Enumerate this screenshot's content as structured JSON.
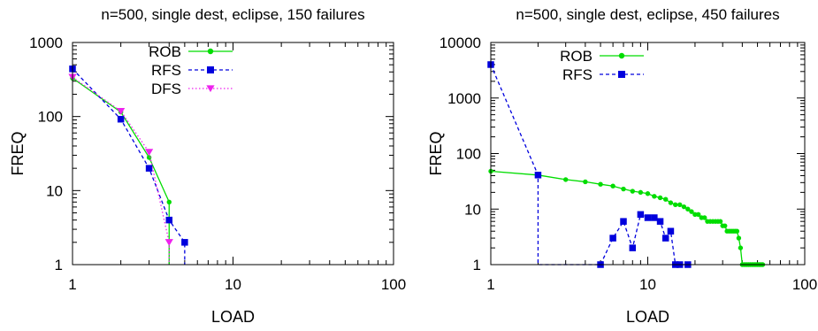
{
  "chart_data": [
    {
      "type": "line",
      "title": "n=500, single dest, eclipse, 150 failures",
      "xlabel": "LOAD",
      "ylabel": "FREQ",
      "xscale": "log",
      "yscale": "log",
      "xlim": [
        1,
        100
      ],
      "ylim": [
        1,
        1000
      ],
      "xticks": [
        {
          "v": 1,
          "label": "1"
        },
        {
          "v": 10,
          "label": "10"
        },
        {
          "v": 100,
          "label": "100"
        }
      ],
      "yticks": [
        {
          "v": 1,
          "label": "1"
        },
        {
          "v": 10,
          "label": "10"
        },
        {
          "v": 100,
          "label": "100"
        },
        {
          "v": 1000,
          "label": "1000"
        }
      ],
      "grid": false,
      "legend_position": "top-right",
      "series": [
        {
          "name": "ROB",
          "color": "#00dd00",
          "dash": "solid",
          "marker": "circle",
          "x": [
            1,
            2,
            3,
            4,
            4
          ],
          "y": [
            330,
            115,
            28,
            7,
            1
          ]
        },
        {
          "name": "RFS",
          "color": "#0000dd",
          "dash": "dashed",
          "marker": "square",
          "x": [
            1,
            2,
            3,
            4,
            5,
            5
          ],
          "y": [
            440,
            92,
            20,
            4,
            2,
            1
          ]
        },
        {
          "name": "DFS",
          "color": "#ee22ee",
          "dash": "dotted",
          "marker": "triangle-down",
          "x": [
            1,
            2,
            3,
            4,
            4
          ],
          "y": [
            340,
            118,
            33,
            2,
            1
          ]
        }
      ]
    },
    {
      "type": "line",
      "title": "n=500, single dest, eclipse, 450 failures",
      "xlabel": "LOAD",
      "ylabel": "FREQ",
      "xscale": "log",
      "yscale": "log",
      "xlim": [
        1,
        100
      ],
      "ylim": [
        1,
        10000
      ],
      "xticks": [
        {
          "v": 1,
          "label": "1"
        },
        {
          "v": 10,
          "label": "10"
        },
        {
          "v": 100,
          "label": "100"
        }
      ],
      "yticks": [
        {
          "v": 1,
          "label": "1"
        },
        {
          "v": 10,
          "label": "10"
        },
        {
          "v": 100,
          "label": "100"
        },
        {
          "v": 1000,
          "label": "1000"
        },
        {
          "v": 10000,
          "label": "10000"
        }
      ],
      "grid": false,
      "legend_position": "top-right",
      "series": [
        {
          "name": "ROB",
          "color": "#00dd00",
          "dash": "solid",
          "marker": "circle",
          "x": [
            1,
            2,
            3,
            4,
            5,
            6,
            7,
            8,
            9,
            10,
            11,
            12,
            13,
            14,
            15,
            16,
            17,
            18,
            19,
            20,
            21,
            22,
            23,
            24,
            25,
            26,
            27,
            28,
            29,
            30,
            31,
            32,
            33,
            34,
            35,
            36,
            37,
            38,
            39,
            40,
            41,
            42,
            43,
            44,
            45,
            46,
            47,
            48,
            49,
            50,
            51,
            52,
            53,
            54
          ],
          "y": [
            48,
            41,
            34,
            31,
            28,
            26,
            23,
            21,
            20,
            19,
            17,
            16,
            15,
            13,
            12,
            12,
            11,
            10,
            9,
            8,
            8,
            7,
            7,
            6,
            6,
            6,
            6,
            6,
            6,
            5,
            5,
            4,
            4,
            4,
            4,
            4,
            4,
            3,
            2,
            1,
            1,
            1,
            1,
            1,
            1,
            1,
            1,
            1,
            1,
            1,
            1,
            1,
            1,
            1
          ]
        },
        {
          "name": "RFS",
          "color": "#0000dd",
          "dash": "dashed",
          "marker": "square",
          "x": [
            1,
            2,
            2,
            5,
            6,
            7,
            8,
            9,
            10,
            11,
            12,
            13,
            14,
            15,
            16,
            18
          ],
          "y": [
            4000,
            41,
            1,
            1,
            3,
            6,
            2,
            8,
            7,
            7,
            6,
            3,
            4,
            1,
            1,
            1
          ]
        }
      ]
    }
  ]
}
